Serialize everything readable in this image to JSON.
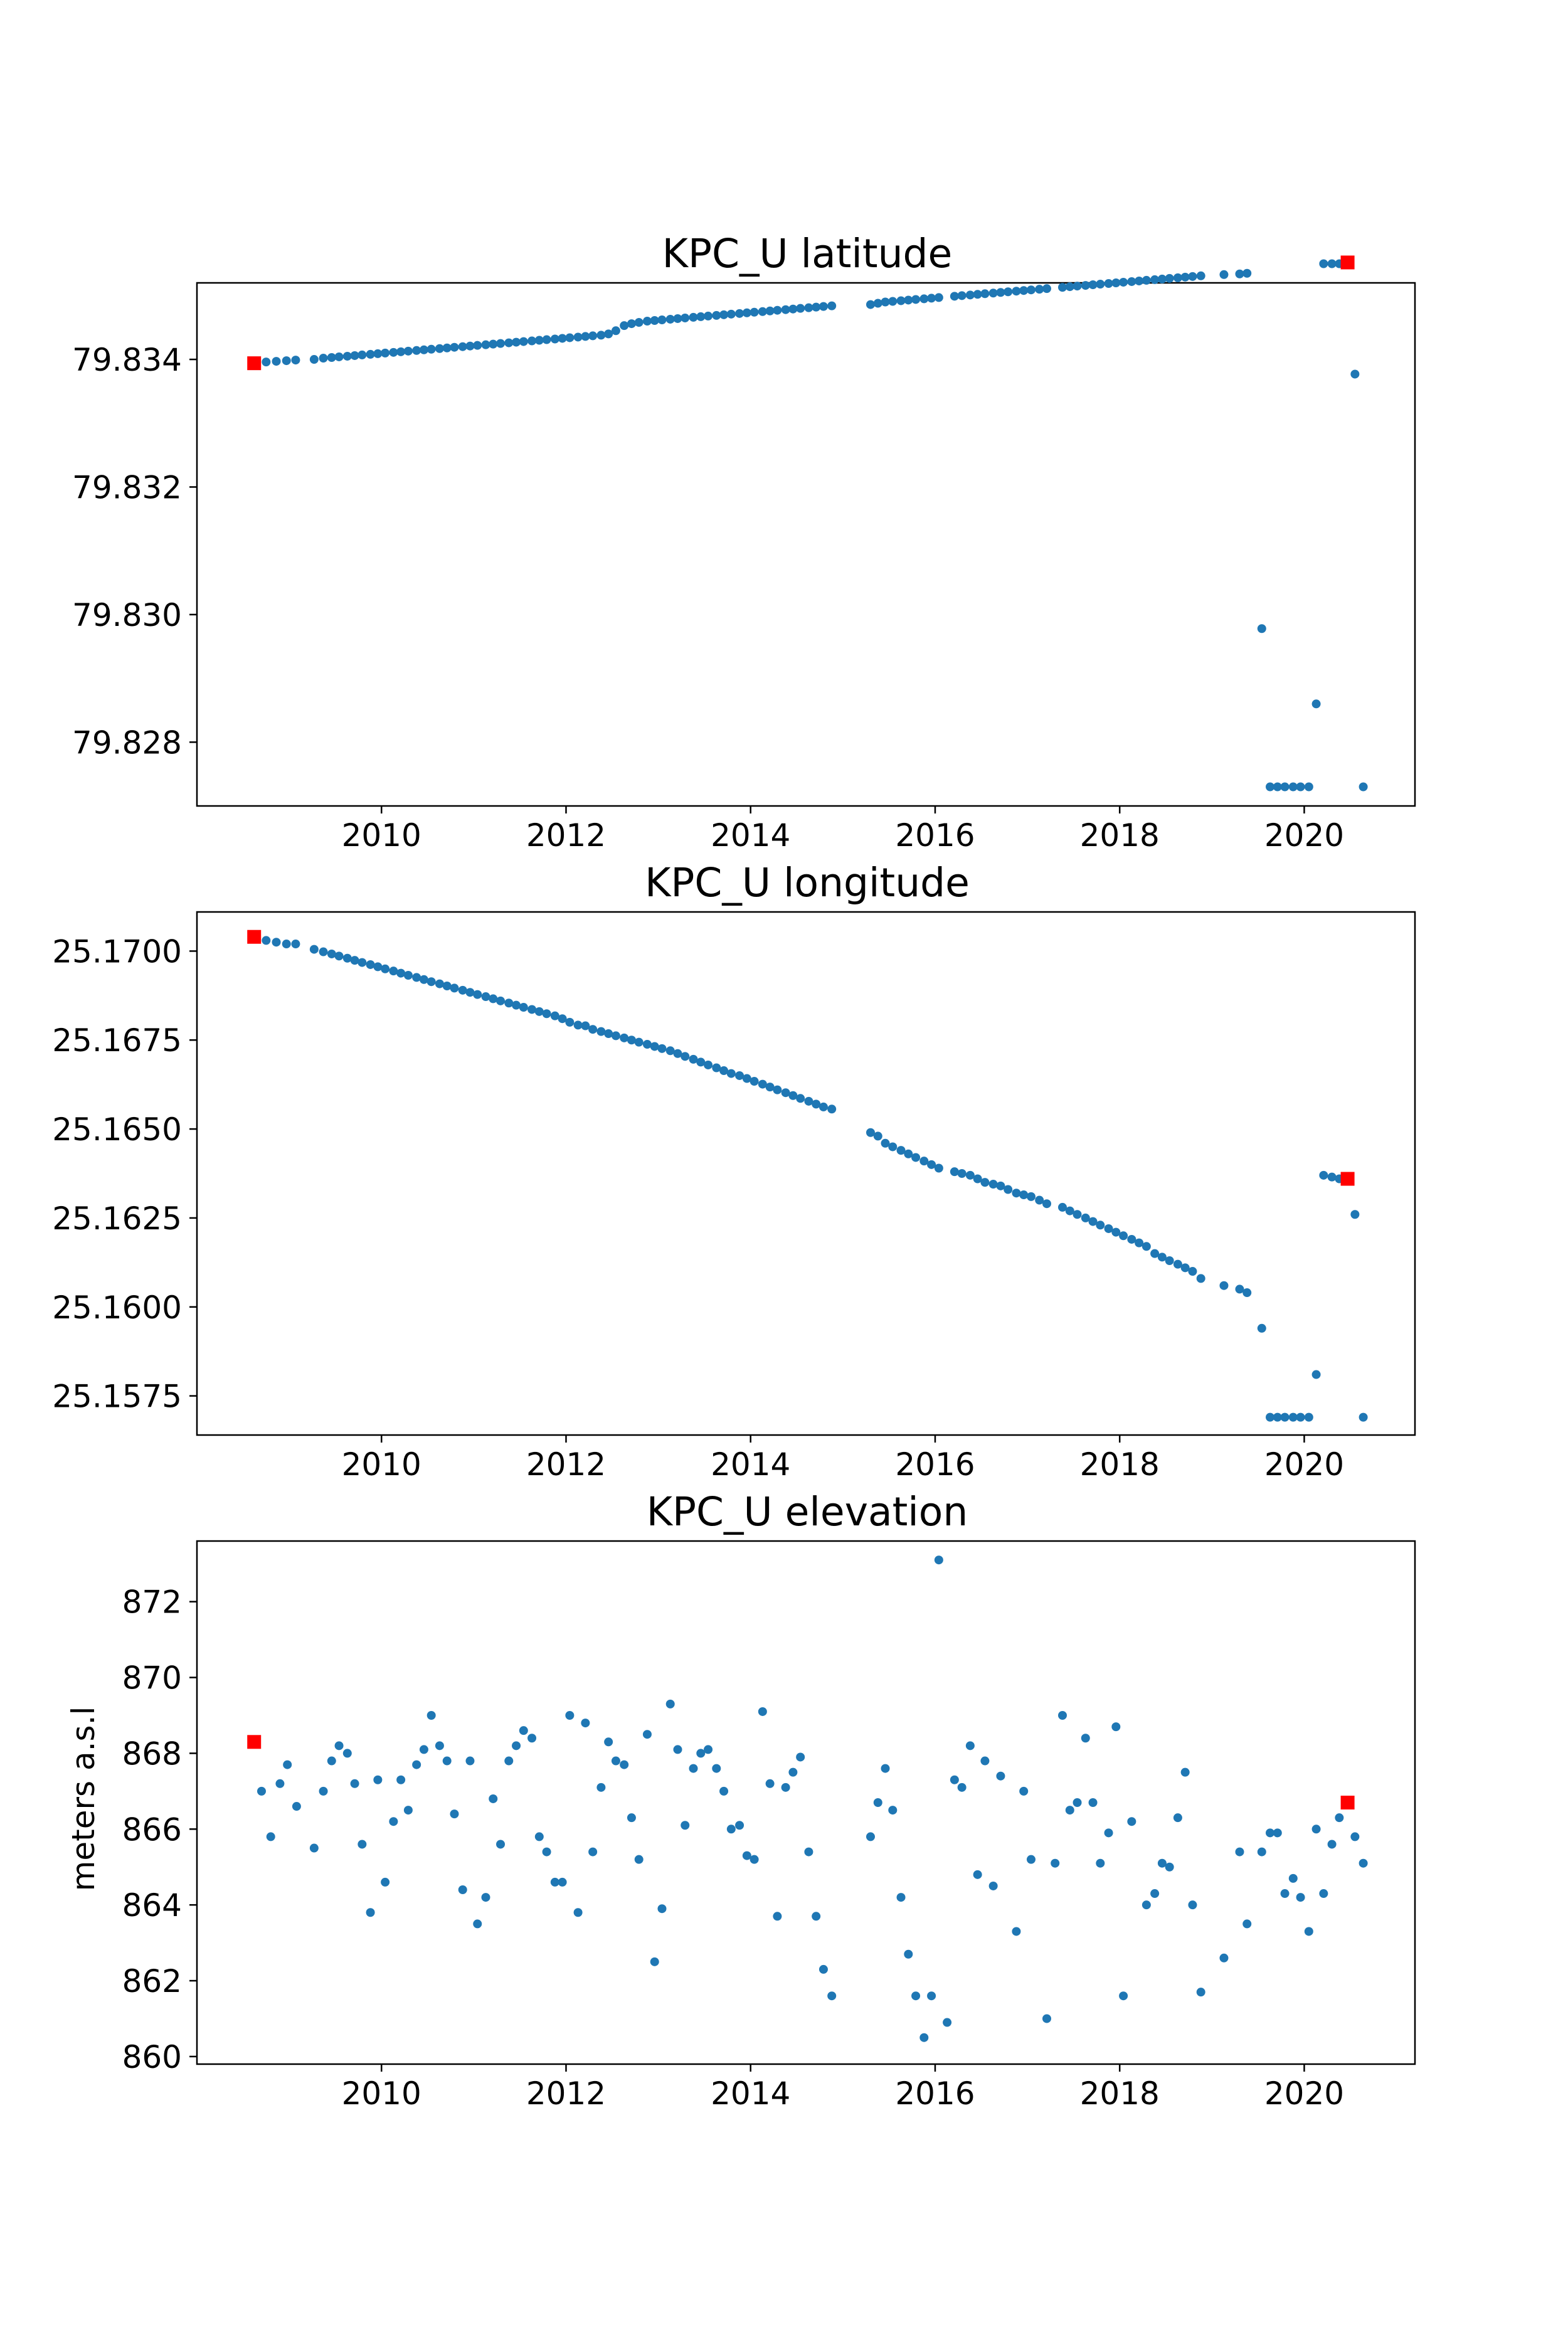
{
  "colors": {
    "series": "#1f77b4",
    "endpoints": "#ff0000"
  },
  "chart_data": [
    {
      "type": "scatter",
      "title": "KPC_U latitude",
      "xlabel": "",
      "ylabel": "",
      "xlim": [
        2008.0,
        2021.2
      ],
      "ylim": [
        79.827,
        79.8352
      ],
      "xticks": [
        2010,
        2012,
        2014,
        2016,
        2018,
        2020
      ],
      "xtick_labels": [
        "2010",
        "2012",
        "2014",
        "2016",
        "2018",
        "2020"
      ],
      "yticks": [
        79.828,
        79.83,
        79.832,
        79.834
      ],
      "ytick_labels": [
        "79.828",
        "79.830",
        "79.832",
        "79.834"
      ],
      "grid": false,
      "legend": "none",
      "series": [
        {
          "x": [
            2008.62,
            2008.75,
            2008.86,
            2008.97,
            2009.07,
            2009.27,
            2009.37,
            2009.46,
            2009.54,
            2009.63,
            2009.71,
            2009.79,
            2009.88,
            2009.96,
            2010.04,
            2010.13,
            2010.21,
            2010.29,
            2010.38,
            2010.46,
            2010.54,
            2010.63,
            2010.71,
            2010.79,
            2010.88,
            2010.96,
            2011.04,
            2011.13,
            2011.21,
            2011.29,
            2011.38,
            2011.46,
            2011.54,
            2011.63,
            2011.71,
            2011.79,
            2011.88,
            2011.96,
            2012.04,
            2012.13,
            2012.21,
            2012.29,
            2012.38,
            2012.46,
            2012.54,
            2012.63,
            2012.71,
            2012.79,
            2012.88,
            2012.96,
            2013.04,
            2013.13,
            2013.21,
            2013.29,
            2013.38,
            2013.46,
            2013.54,
            2013.63,
            2013.71,
            2013.79,
            2013.88,
            2013.96,
            2014.04,
            2014.13,
            2014.21,
            2014.29,
            2014.38,
            2014.46,
            2014.54,
            2014.63,
            2014.71,
            2014.79,
            2014.88,
            2015.3,
            2015.38,
            2015.46,
            2015.54,
            2015.63,
            2015.71,
            2015.79,
            2015.88,
            2015.96,
            2016.04,
            2016.21,
            2016.29,
            2016.38,
            2016.46,
            2016.54,
            2016.63,
            2016.71,
            2016.79,
            2016.88,
            2016.96,
            2017.04,
            2017.13,
            2017.21,
            2017.38,
            2017.46,
            2017.54,
            2017.63,
            2017.71,
            2017.79,
            2017.88,
            2017.96,
            2018.04,
            2018.13,
            2018.21,
            2018.29,
            2018.38,
            2018.46,
            2018.54,
            2018.63,
            2018.71,
            2018.79,
            2018.88,
            2019.13,
            2019.3,
            2019.38,
            2019.54,
            2019.63,
            2019.71,
            2019.79,
            2019.88,
            2019.96,
            2020.05,
            2020.13,
            2020.21,
            2020.3,
            2020.38,
            2020.55,
            2020.64
          ],
          "y": [
            79.83394,
            79.83396,
            79.83397,
            79.83398,
            79.83399,
            79.834,
            79.83402,
            79.83403,
            79.83404,
            79.83405,
            79.83406,
            79.83407,
            79.83408,
            79.83409,
            79.8341,
            79.83411,
            79.83412,
            79.83413,
            79.83414,
            79.83415,
            79.83416,
            79.83417,
            79.83418,
            79.83419,
            79.8342,
            79.83421,
            79.83422,
            79.83423,
            79.83424,
            79.83425,
            79.83426,
            79.83427,
            79.83428,
            79.83429,
            79.8343,
            79.83431,
            79.83432,
            79.83433,
            79.83434,
            79.83435,
            79.83436,
            79.83437,
            79.83438,
            79.8344,
            79.83445,
            79.83453,
            79.83456,
            79.83458,
            79.8346,
            79.83461,
            79.83462,
            79.83463,
            79.83464,
            79.83465,
            79.83466,
            79.83467,
            79.83468,
            79.83469,
            79.8347,
            79.83471,
            79.83472,
            79.83473,
            79.83474,
            79.83475,
            79.83476,
            79.83477,
            79.83478,
            79.83479,
            79.8348,
            79.83481,
            79.83482,
            79.83483,
            79.83484,
            79.83486,
            79.83488,
            79.8349,
            79.83491,
            79.83492,
            79.83493,
            79.83494,
            79.83495,
            79.83496,
            79.83497,
            79.83499,
            79.835,
            79.83501,
            79.83502,
            79.83503,
            79.83504,
            79.83505,
            79.83506,
            79.83507,
            79.83508,
            79.83509,
            79.8351,
            79.83511,
            79.83513,
            79.83514,
            79.83515,
            79.83516,
            79.83517,
            79.83518,
            79.83519,
            79.8352,
            79.83521,
            79.83522,
            79.83523,
            79.83524,
            79.83525,
            79.83526,
            79.83527,
            79.83528,
            79.83529,
            79.8353,
            79.83531,
            79.83533,
            79.83534,
            79.83535,
            79.82978,
            79.8273,
            79.8273,
            79.8273,
            79.8273,
            79.8273,
            79.8273,
            79.8286,
            79.8355,
            79.8355,
            79.8355,
            79.83377,
            79.8273
          ]
        },
        {
          "name": "",
          "marker": "square",
          "x": [
            2008.62,
            2020.47
          ],
          "y": [
            79.83394,
            79.83552
          ]
        }
      ]
    },
    {
      "type": "scatter",
      "title": "KPC_U longitude",
      "xlabel": "",
      "ylabel": "",
      "xlim": [
        2008.0,
        2021.2
      ],
      "ylim": [
        25.1564,
        25.1711
      ],
      "xticks": [
        2010,
        2012,
        2014,
        2016,
        2018,
        2020
      ],
      "xtick_labels": [
        "2010",
        "2012",
        "2014",
        "2016",
        "2018",
        "2020"
      ],
      "yticks": [
        25.1575,
        25.16,
        25.1625,
        25.165,
        25.1675,
        25.17
      ],
      "ytick_labels": [
        "25.1575",
        "25.1600",
        "25.1625",
        "25.1650",
        "25.1675",
        "25.1700"
      ],
      "grid": false,
      "legend": "none",
      "series": [
        {
          "x": [
            2008.62,
            2008.75,
            2008.86,
            2008.97,
            2009.07,
            2009.27,
            2009.37,
            2009.46,
            2009.54,
            2009.63,
            2009.71,
            2009.79,
            2009.88,
            2009.96,
            2010.04,
            2010.13,
            2010.21,
            2010.29,
            2010.38,
            2010.46,
            2010.54,
            2010.63,
            2010.71,
            2010.79,
            2010.88,
            2010.96,
            2011.04,
            2011.13,
            2011.21,
            2011.29,
            2011.38,
            2011.46,
            2011.54,
            2011.63,
            2011.71,
            2011.79,
            2011.88,
            2011.96,
            2012.04,
            2012.13,
            2012.21,
            2012.29,
            2012.38,
            2012.46,
            2012.54,
            2012.63,
            2012.71,
            2012.79,
            2012.88,
            2012.96,
            2013.04,
            2013.13,
            2013.21,
            2013.29,
            2013.38,
            2013.46,
            2013.54,
            2013.63,
            2013.71,
            2013.79,
            2013.88,
            2013.96,
            2014.04,
            2014.13,
            2014.21,
            2014.29,
            2014.38,
            2014.46,
            2014.54,
            2014.63,
            2014.71,
            2014.79,
            2014.88,
            2015.3,
            2015.38,
            2015.46,
            2015.54,
            2015.63,
            2015.71,
            2015.79,
            2015.88,
            2015.96,
            2016.04,
            2016.21,
            2016.29,
            2016.38,
            2016.46,
            2016.54,
            2016.63,
            2016.71,
            2016.79,
            2016.88,
            2016.96,
            2017.04,
            2017.13,
            2017.21,
            2017.38,
            2017.46,
            2017.54,
            2017.63,
            2017.71,
            2017.79,
            2017.88,
            2017.96,
            2018.04,
            2018.13,
            2018.21,
            2018.29,
            2018.38,
            2018.46,
            2018.54,
            2018.63,
            2018.71,
            2018.79,
            2018.88,
            2019.13,
            2019.3,
            2019.38,
            2019.54,
            2019.63,
            2019.71,
            2019.79,
            2019.88,
            2019.96,
            2020.05,
            2020.13,
            2020.21,
            2020.3,
            2020.38,
            2020.55,
            2020.64
          ],
          "y": [
            25.1704,
            25.1703,
            25.17025,
            25.1702,
            25.1702,
            25.17005,
            25.16998,
            25.16992,
            25.16986,
            25.1698,
            25.16974,
            25.16968,
            25.16962,
            25.16956,
            25.1695,
            25.16944,
            25.16938,
            25.16932,
            25.16926,
            25.1692,
            25.16914,
            25.16908,
            25.16902,
            25.16896,
            25.1689,
            25.16884,
            25.16878,
            25.16872,
            25.16866,
            25.1686,
            25.16854,
            25.16848,
            25.16842,
            25.16836,
            25.1683,
            25.16824,
            25.16818,
            25.1681,
            25.168,
            25.16792,
            25.1679,
            25.1678,
            25.16774,
            25.16768,
            25.16762,
            25.16756,
            25.1675,
            25.16744,
            25.16738,
            25.16732,
            25.16726,
            25.1672,
            25.16712,
            25.16704,
            25.16696,
            25.16688,
            25.1668,
            25.16672,
            25.16664,
            25.16656,
            25.1665,
            25.16642,
            25.16634,
            25.16626,
            25.16618,
            25.1661,
            25.16602,
            25.16594,
            25.16586,
            25.16578,
            25.1657,
            25.16562,
            25.16556,
            25.1649,
            25.1648,
            25.1646,
            25.1645,
            25.1644,
            25.1643,
            25.1642,
            25.1641,
            25.164,
            25.1639,
            25.1638,
            25.16375,
            25.1637,
            25.1636,
            25.1635,
            25.16345,
            25.1634,
            25.1633,
            25.1632,
            25.16315,
            25.1631,
            25.163,
            25.1629,
            25.1628,
            25.1627,
            25.1626,
            25.1625,
            25.1624,
            25.1623,
            25.1622,
            25.1621,
            25.162,
            25.1619,
            25.1618,
            25.1617,
            25.1615,
            25.1614,
            25.1613,
            25.1612,
            25.1611,
            25.161,
            25.1608,
            25.1606,
            25.1605,
            25.1604,
            25.1594,
            25.1569,
            25.1569,
            25.1569,
            25.1569,
            25.1569,
            25.1569,
            25.1581,
            25.1637,
            25.16365,
            25.1636,
            25.1626,
            25.1569
          ]
        },
        {
          "name": "",
          "marker": "square",
          "x": [
            2008.62,
            2020.47
          ],
          "y": [
            25.1704,
            25.1636
          ]
        }
      ]
    },
    {
      "type": "scatter",
      "title": "KPC_U elevation",
      "xlabel": "",
      "ylabel": "meters a.s.l",
      "xlim": [
        2008.0,
        2021.2
      ],
      "ylim": [
        859.8,
        873.6
      ],
      "xticks": [
        2010,
        2012,
        2014,
        2016,
        2018,
        2020
      ],
      "xtick_labels": [
        "2010",
        "2012",
        "2014",
        "2016",
        "2018",
        "2020"
      ],
      "yticks": [
        860,
        862,
        864,
        866,
        868,
        870,
        872
      ],
      "ytick_labels": [
        "860",
        "862",
        "864",
        "866",
        "868",
        "870",
        "872"
      ],
      "grid": false,
      "legend": "none",
      "series": [
        {
          "x": [
            2008.7,
            2008.8,
            2008.9,
            2008.98,
            2009.08,
            2009.27,
            2009.37,
            2009.46,
            2009.54,
            2009.63,
            2009.71,
            2009.79,
            2009.88,
            2009.96,
            2010.04,
            2010.13,
            2010.21,
            2010.29,
            2010.38,
            2010.46,
            2010.54,
            2010.63,
            2010.71,
            2010.79,
            2010.88,
            2010.96,
            2011.04,
            2011.13,
            2011.21,
            2011.29,
            2011.38,
            2011.46,
            2011.54,
            2011.63,
            2011.71,
            2011.79,
            2011.88,
            2011.96,
            2012.04,
            2012.13,
            2012.21,
            2012.29,
            2012.38,
            2012.46,
            2012.54,
            2012.63,
            2012.71,
            2012.79,
            2012.88,
            2012.96,
            2013.04,
            2013.13,
            2013.21,
            2013.29,
            2013.38,
            2013.46,
            2013.54,
            2013.63,
            2013.71,
            2013.79,
            2013.88,
            2013.96,
            2014.04,
            2014.13,
            2014.21,
            2014.29,
            2014.38,
            2014.46,
            2014.54,
            2014.63,
            2014.71,
            2014.79,
            2014.88,
            2015.3,
            2015.38,
            2015.46,
            2015.54,
            2015.63,
            2015.71,
            2015.79,
            2015.88,
            2015.96,
            2016.04,
            2016.13,
            2016.21,
            2016.29,
            2016.38,
            2016.46,
            2016.54,
            2016.63,
            2016.71,
            2016.88,
            2016.96,
            2017.04,
            2017.21,
            2017.3,
            2017.38,
            2017.46,
            2017.54,
            2017.63,
            2017.71,
            2017.79,
            2017.88,
            2017.96,
            2018.04,
            2018.13,
            2018.29,
            2018.38,
            2018.46,
            2018.54,
            2018.63,
            2018.71,
            2018.79,
            2018.88,
            2019.13,
            2019.3,
            2019.38,
            2019.54,
            2019.63,
            2019.71,
            2019.79,
            2019.88,
            2019.96,
            2020.05,
            2020.13,
            2020.21,
            2020.3,
            2020.38,
            2020.55,
            2020.64
          ],
          "y": [
            867.0,
            865.8,
            867.2,
            867.7,
            866.6,
            865.5,
            867.0,
            867.8,
            868.2,
            868.0,
            867.2,
            865.6,
            863.8,
            867.3,
            864.6,
            866.2,
            867.3,
            866.5,
            867.7,
            868.1,
            869.0,
            868.2,
            867.8,
            866.4,
            864.4,
            867.8,
            863.5,
            864.2,
            866.8,
            865.6,
            867.8,
            868.2,
            868.6,
            868.4,
            865.8,
            865.4,
            864.6,
            864.6,
            869.0,
            863.8,
            868.8,
            865.4,
            867.1,
            868.3,
            867.8,
            867.7,
            866.3,
            865.2,
            868.5,
            862.5,
            863.9,
            869.3,
            868.1,
            866.1,
            867.6,
            868.0,
            868.1,
            867.6,
            867.0,
            866.0,
            866.1,
            865.3,
            865.2,
            869.1,
            867.2,
            863.7,
            867.1,
            867.5,
            867.9,
            865.4,
            863.7,
            862.3,
            861.6,
            865.8,
            866.7,
            867.6,
            866.5,
            864.2,
            862.7,
            861.6,
            860.5,
            861.6,
            873.1,
            860.9,
            867.3,
            867.1,
            868.2,
            864.8,
            867.8,
            864.5,
            867.4,
            863.3,
            867.0,
            865.2,
            861.0,
            865.1,
            869.0,
            866.5,
            866.7,
            868.4,
            866.7,
            865.1,
            865.9,
            868.7,
            861.6,
            866.2,
            864.0,
            864.3,
            865.1,
            865.0,
            866.3,
            867.5,
            864.0,
            861.7,
            862.6,
            865.4,
            863.5,
            865.4,
            865.9,
            865.9,
            864.3,
            864.7,
            864.2,
            863.3,
            866.0,
            864.3,
            865.6,
            866.3,
            865.8,
            865.1
          ]
        },
        {
          "name": "",
          "marker": "square",
          "x": [
            2008.62,
            2020.47
          ],
          "y": [
            868.3,
            866.7
          ]
        }
      ]
    }
  ]
}
